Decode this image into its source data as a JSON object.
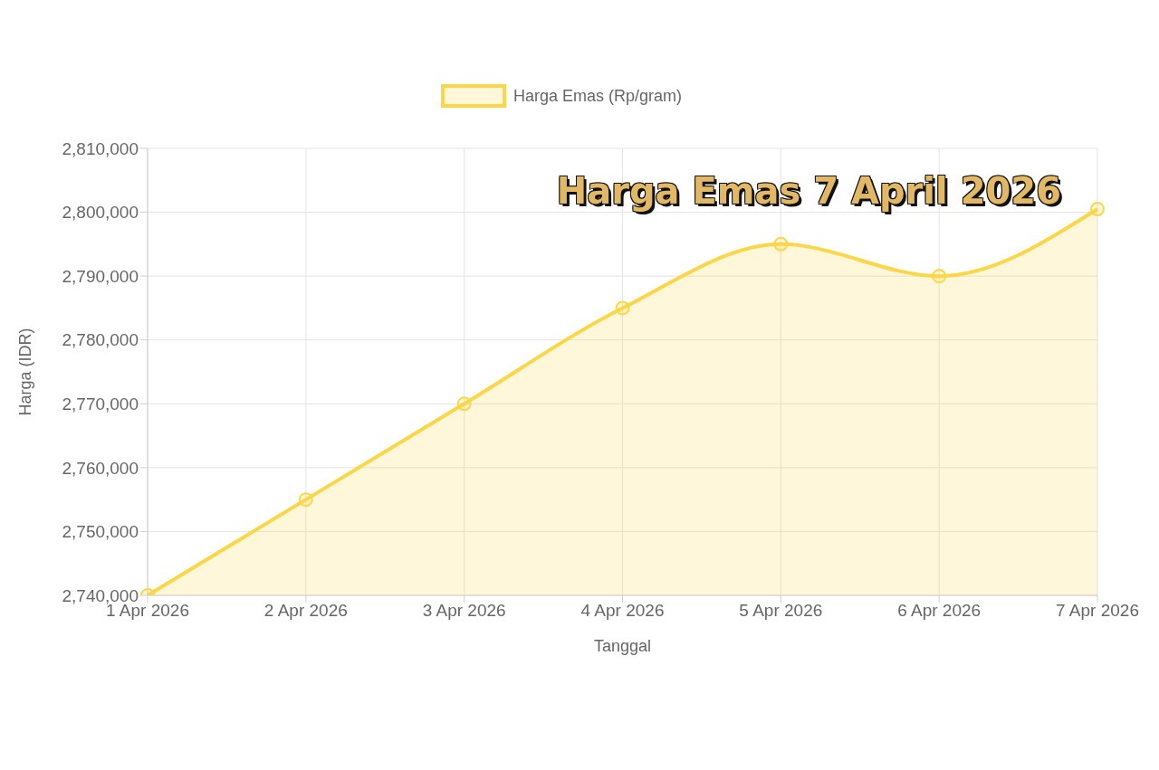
{
  "chart_data": {
    "type": "area",
    "title": "Harga Emas 7 April 2026",
    "xlabel": "Tanggal",
    "ylabel": "Harga (IDR)",
    "categories": [
      "1 Apr 2026",
      "2 Apr 2026",
      "3 Apr 2026",
      "4 Apr 2026",
      "5 Apr 2026",
      "6 Apr 2026",
      "7 Apr 2026"
    ],
    "series": [
      {
        "name": "Harga Emas (Rp/gram)",
        "color": "#fbd748",
        "values": [
          2740000,
          2755000,
          2770000,
          2785000,
          2795000,
          2790000,
          2800500
        ]
      }
    ],
    "ylim": [
      2740000,
      2810000
    ],
    "yticks": [
      {
        "value": 2740000,
        "label": "2,740,000"
      },
      {
        "value": 2750000,
        "label": "2,750,000"
      },
      {
        "value": 2760000,
        "label": "2,760,000"
      },
      {
        "value": 2770000,
        "label": "2,770,000"
      },
      {
        "value": 2780000,
        "label": "2,780,000"
      },
      {
        "value": 2790000,
        "label": "2,790,000"
      },
      {
        "value": 2800000,
        "label": "2,800,000"
      },
      {
        "value": 2810000,
        "label": "2,810,000"
      }
    ],
    "grid": true,
    "legend": "top",
    "marker": "circle"
  }
}
